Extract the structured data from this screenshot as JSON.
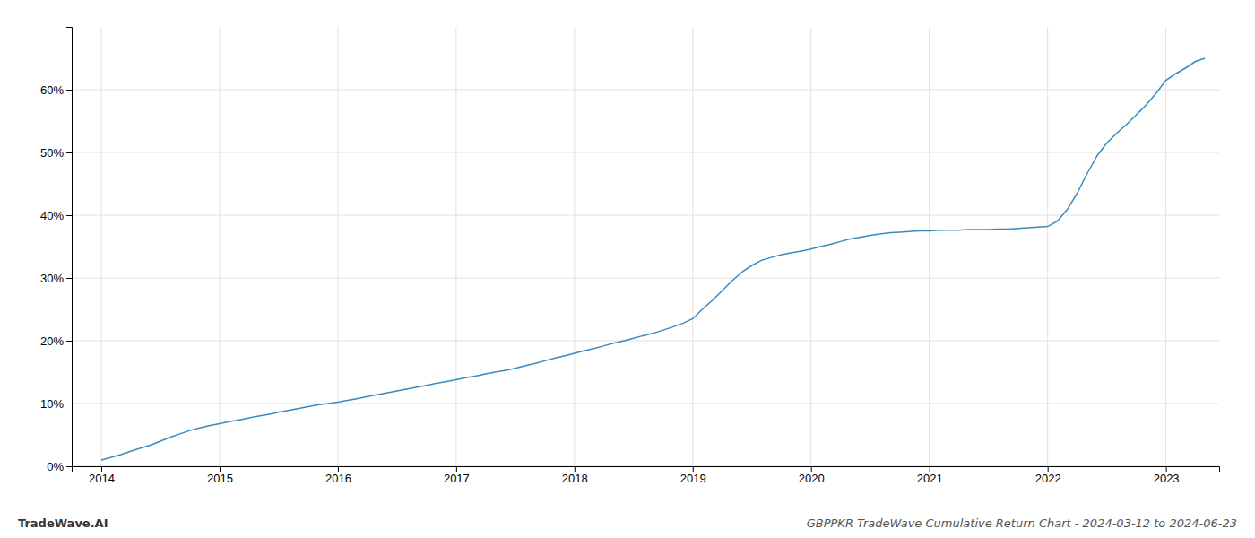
{
  "chart_data": {
    "type": "line",
    "title": "GBPPKR TradeWave Cumulative Return Chart - 2024-03-12 to 2024-06-23",
    "annotations": [
      "TradeWave.AI"
    ],
    "x": [
      2014.0,
      2014.08,
      2014.17,
      2014.25,
      2014.33,
      2014.42,
      2014.5,
      2014.58,
      2014.67,
      2014.75,
      2014.83,
      2014.92,
      2015.0,
      2015.08,
      2015.17,
      2015.25,
      2015.33,
      2015.42,
      2015.5,
      2015.58,
      2015.67,
      2015.75,
      2015.83,
      2015.92,
      2016.0,
      2016.08,
      2016.17,
      2016.25,
      2016.33,
      2016.42,
      2016.5,
      2016.58,
      2016.67,
      2016.75,
      2016.83,
      2016.92,
      2017.0,
      2017.08,
      2017.17,
      2017.25,
      2017.33,
      2017.42,
      2017.5,
      2017.58,
      2017.67,
      2017.75,
      2017.83,
      2017.92,
      2018.0,
      2018.08,
      2018.17,
      2018.25,
      2018.33,
      2018.42,
      2018.5,
      2018.58,
      2018.67,
      2018.75,
      2018.83,
      2018.92,
      2019.0,
      2019.08,
      2019.17,
      2019.25,
      2019.33,
      2019.42,
      2019.5,
      2019.58,
      2019.67,
      2019.75,
      2019.83,
      2019.92,
      2020.0,
      2020.08,
      2020.17,
      2020.25,
      2020.33,
      2020.42,
      2020.5,
      2020.58,
      2020.67,
      2020.75,
      2020.83,
      2020.92,
      2021.0,
      2021.08,
      2021.17,
      2021.25,
      2021.33,
      2021.42,
      2021.5,
      2021.58,
      2021.67,
      2021.75,
      2021.83,
      2021.92,
      2022.0,
      2022.08,
      2022.17,
      2022.25,
      2022.33,
      2022.42,
      2022.5,
      2022.58,
      2022.67,
      2022.75,
      2022.83,
      2022.92,
      2023.0,
      2023.08,
      2023.17,
      2023.25,
      2023.33
    ],
    "values": [
      1.0,
      1.4,
      1.9,
      2.4,
      2.9,
      3.4,
      4.0,
      4.6,
      5.2,
      5.7,
      6.1,
      6.5,
      6.8,
      7.1,
      7.4,
      7.7,
      8.0,
      8.3,
      8.6,
      8.9,
      9.2,
      9.5,
      9.8,
      10.0,
      10.2,
      10.5,
      10.8,
      11.1,
      11.4,
      11.7,
      12.0,
      12.3,
      12.6,
      12.9,
      13.2,
      13.5,
      13.8,
      14.1,
      14.4,
      14.7,
      15.0,
      15.3,
      15.6,
      16.0,
      16.4,
      16.8,
      17.2,
      17.6,
      18.0,
      18.4,
      18.8,
      19.2,
      19.6,
      20.0,
      20.4,
      20.8,
      21.2,
      21.7,
      22.2,
      22.8,
      23.5,
      25.0,
      26.5,
      28.0,
      29.5,
      31.0,
      32.0,
      32.8,
      33.3,
      33.7,
      34.0,
      34.3,
      34.6,
      35.0,
      35.4,
      35.8,
      36.2,
      36.5,
      36.8,
      37.0,
      37.2,
      37.3,
      37.4,
      37.5,
      37.5,
      37.6,
      37.6,
      37.6,
      37.7,
      37.7,
      37.7,
      37.8,
      37.8,
      37.9,
      38.0,
      38.1,
      38.2,
      39.0,
      41.0,
      43.5,
      46.5,
      49.5,
      51.5,
      53.0,
      54.5,
      56.0,
      57.5,
      59.5,
      61.5,
      62.5,
      63.5,
      64.5,
      65.0
    ],
    "color": "#3a8abf",
    "xlim": [
      2013.75,
      2023.45
    ],
    "xticks": [
      2014,
      2015,
      2016,
      2017,
      2018,
      2019,
      2020,
      2021,
      2022,
      2023
    ],
    "ylim": [
      0,
      70
    ],
    "yticks": [
      {
        "value": 0,
        "label": "0%"
      },
      {
        "value": 10,
        "label": "10%"
      },
      {
        "value": 20,
        "label": "20%"
      },
      {
        "value": 30,
        "label": "30%"
      },
      {
        "value": 40,
        "label": "40%"
      },
      {
        "value": 50,
        "label": "50%"
      },
      {
        "value": 60,
        "label": "60%"
      }
    ],
    "grid": true
  }
}
